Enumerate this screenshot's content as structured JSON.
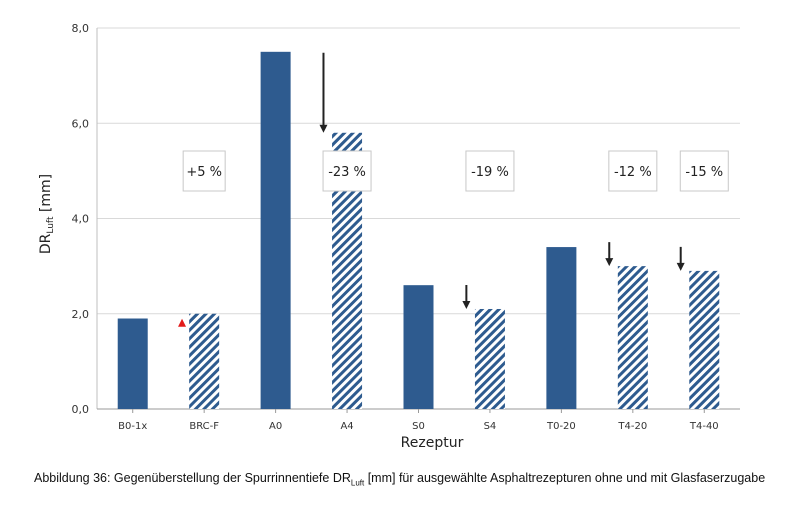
{
  "chart_data": {
    "type": "bar",
    "title": "",
    "xlabel": "Rezeptur",
    "ylabel": "DR",
    "ylabel_sub": "Luft",
    "ylabel_suffix": " [mm]",
    "ylim": [
      0,
      8
    ],
    "yticks": [
      "0,0",
      "2,0",
      "4,0",
      "6,0",
      "8,0"
    ],
    "grid": true,
    "legend": "none",
    "categories": [
      "B0-1x",
      "BRC-F",
      "A0",
      "A4",
      "S0",
      "S4",
      "T0-20",
      "T4-20",
      "T4-40"
    ],
    "values": [
      1.9,
      2.0,
      7.5,
      5.8,
      2.6,
      2.1,
      3.4,
      3.0,
      2.9
    ],
    "styles": [
      "solid",
      "hatched",
      "solid",
      "hatched",
      "solid",
      "hatched",
      "solid",
      "hatched",
      "hatched"
    ],
    "colors": {
      "bar": "#2e5b8f",
      "grid": "#d9d9d9",
      "arrow": "#222222",
      "up_marker": "#e31b1b"
    },
    "annotations": [
      {
        "label": "+5 %",
        "category": "BRC-F",
        "direction": "up"
      },
      {
        "label": "-23 %",
        "category": "A4",
        "direction": "down"
      },
      {
        "label": "-19 %",
        "category": "S4",
        "direction": "down"
      },
      {
        "label": "-12 %",
        "category": "T4-20",
        "direction": "down"
      },
      {
        "label": "-15 %",
        "category": "T4-40",
        "direction": "down"
      }
    ]
  },
  "caption": {
    "prefix": "Abbildung 36: Gegenüberstellung der Spurrinnentiefe DR",
    "sub": "Luft",
    "suffix": " [mm] für ausgewählte Asphaltrezepturen ohne und mit Glasfaserzugabe"
  }
}
